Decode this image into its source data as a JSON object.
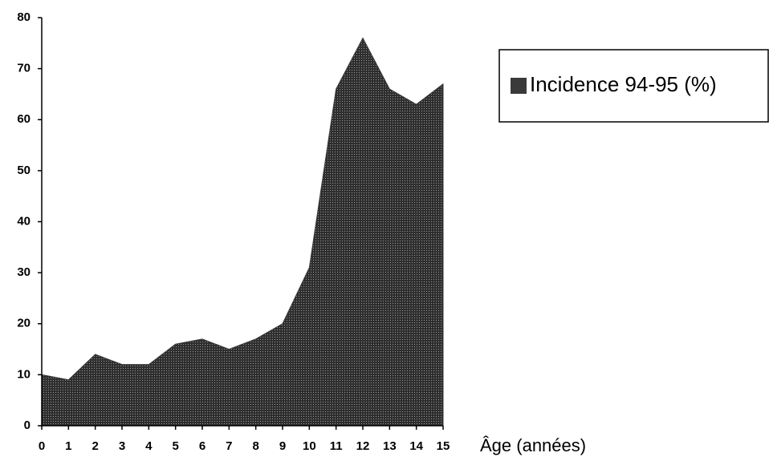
{
  "chart_data": {
    "type": "area",
    "x_label": "Âge (années)",
    "x": [
      0,
      1,
      2,
      3,
      4,
      5,
      6,
      7,
      8,
      9,
      10,
      11,
      12,
      13,
      14,
      15
    ],
    "series": [
      {
        "name": "Incidence 94-95 (%)",
        "color": "#3a3a3a",
        "values": [
          10,
          9,
          14,
          12,
          12,
          16,
          17,
          15,
          17,
          20,
          31,
          66,
          76,
          66,
          63,
          67
        ]
      }
    ],
    "xlim": [
      0,
      15
    ],
    "xticks": [
      0,
      1,
      2,
      3,
      4,
      5,
      6,
      7,
      8,
      9,
      10,
      11,
      12,
      13,
      14,
      15
    ],
    "ylim": [
      0,
      80
    ],
    "yticks": [
      0,
      10,
      20,
      30,
      40,
      50,
      60,
      70,
      80
    ],
    "legend": "top-right"
  }
}
